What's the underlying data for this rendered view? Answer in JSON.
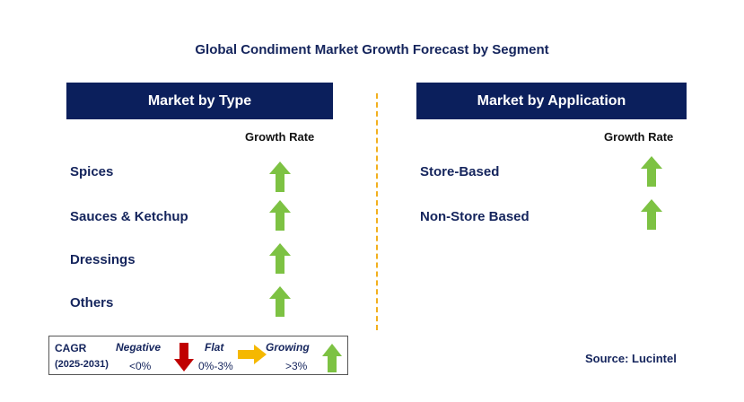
{
  "title": "Global Condiment Market Growth Forecast by Segment",
  "left_panel": {
    "header": "Market by Type",
    "growth_rate_label": "Growth Rate",
    "rows": [
      "Spices",
      "Sauces & Ketchup",
      "Dressings",
      "Others"
    ]
  },
  "right_panel": {
    "header": "Market by Application",
    "growth_rate_label": "Growth Rate",
    "rows": [
      "Store-Based",
      "Non-Store Based"
    ]
  },
  "legend": {
    "cagr": "CAGR",
    "period": "(2025-2031)",
    "negative": "Negative",
    "negative_value": "<0%",
    "flat": "Flat",
    "flat_value": "0%-3%",
    "growing": "Growing",
    "growing_value": ">3%"
  },
  "source": "Source: Lucintel",
  "colors": {
    "header_bg": "#0b1f5c",
    "growing_arrow": "#7dc243",
    "negative_arrow": "#c00000",
    "flat_arrow": "#f5b800",
    "divider": "#f2b01e"
  },
  "icons": {
    "growing": "green-up-arrow-icon",
    "negative": "red-down-arrow-icon",
    "flat": "orange-right-arrow-icon"
  }
}
